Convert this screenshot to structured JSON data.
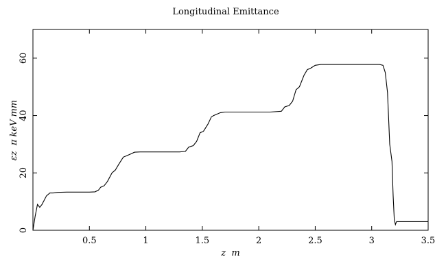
{
  "chart_data": {
    "type": "line",
    "title": "Longitudinal Emittance",
    "xlabel": "z  m",
    "ylabel": "εz  π keV mm",
    "xlim": [
      0,
      3.5
    ],
    "ylim": [
      0,
      70
    ],
    "x_ticks": [
      0.5,
      1,
      1.5,
      2,
      2.5,
      3,
      3.5
    ],
    "x_tick_labels": [
      "0.5",
      "1",
      "1.5",
      "2",
      "2.5",
      "3",
      "3.5"
    ],
    "y_ticks": [
      0,
      20,
      40,
      60
    ],
    "y_tick_labels": [
      "0",
      "20",
      "40",
      "60"
    ],
    "grid": false,
    "series": [
      {
        "x": [
          0,
          0.02,
          0.04,
          0.06,
          0.08,
          0.12,
          0.15,
          0.18,
          0.22,
          0.3,
          0.4,
          0.5,
          0.55,
          0.58,
          0.6,
          0.63,
          0.66,
          0.7,
          0.73,
          0.76,
          0.8,
          0.83,
          0.86,
          0.9,
          0.95,
          1.0,
          1.1,
          1.2,
          1.3,
          1.35,
          1.38,
          1.42,
          1.45,
          1.48,
          1.51,
          1.55,
          1.58,
          1.6,
          1.63,
          1.66,
          1.7,
          1.8,
          1.9,
          2.0,
          2.1,
          2.2,
          2.23,
          2.27,
          2.3,
          2.33,
          2.36,
          2.4,
          2.43,
          2.46,
          2.5,
          2.55,
          2.6,
          2.7,
          2.8,
          2.9,
          3.0,
          3.07,
          3.1,
          3.12,
          3.14,
          3.16,
          3.18,
          3.19,
          3.2,
          3.21,
          3.22,
          3.23,
          3.24,
          3.3,
          3.4,
          3.5
        ],
        "y": [
          0,
          5,
          9,
          8,
          9,
          12,
          13,
          13,
          13.2,
          13.3,
          13.3,
          13.3,
          13.4,
          14,
          15,
          15.5,
          17,
          20,
          21,
          23,
          25.5,
          26,
          26.5,
          27.2,
          27.3,
          27.3,
          27.3,
          27.3,
          27.3,
          27.5,
          29,
          29.5,
          31,
          34,
          34.5,
          37,
          39.5,
          40,
          40.5,
          41,
          41.2,
          41.2,
          41.2,
          41.2,
          41.2,
          41.5,
          43,
          43.5,
          45,
          49,
          50,
          54,
          56,
          56.5,
          57.5,
          57.8,
          57.8,
          57.8,
          57.8,
          57.8,
          57.8,
          57.8,
          57.5,
          55,
          48,
          30,
          24,
          12,
          4,
          2,
          3,
          3,
          3,
          3,
          3,
          3
        ]
      }
    ]
  }
}
